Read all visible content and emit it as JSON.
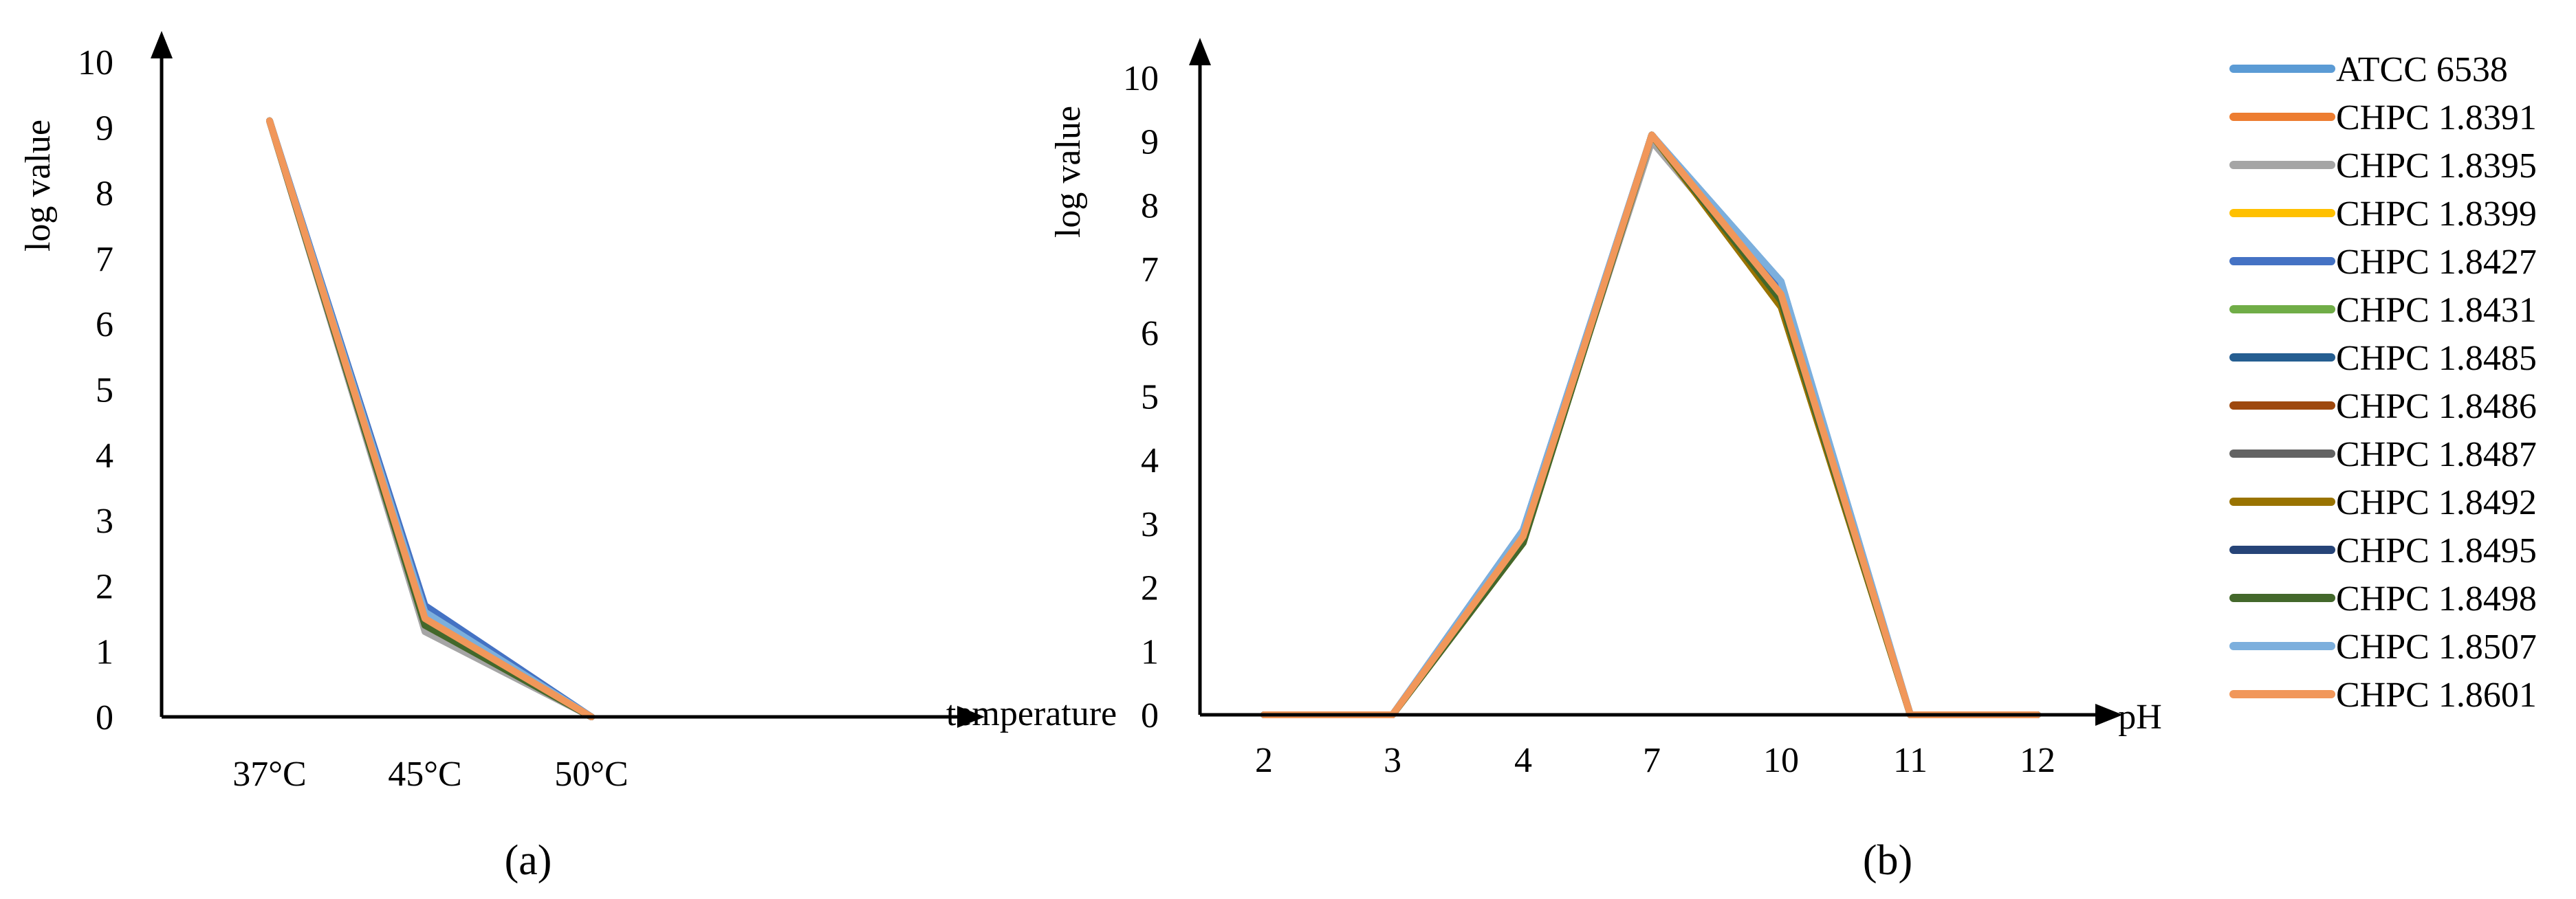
{
  "colors": {
    "ATCC 6538": "#5b9bd5",
    "CHPC 1.8391": "#ed7d31",
    "CHPC 1.8395": "#a5a5a5",
    "CHPC 1.8399": "#ffc000",
    "CHPC 1.8427": "#4472c4",
    "CHPC 1.8431": "#70ad47",
    "CHPC 1.8485": "#255e91",
    "CHPC 1.8486": "#9e480e",
    "CHPC 1.8487": "#636363",
    "CHPC 1.8492": "#997300",
    "CHPC 1.8495": "#264478",
    "CHPC 1.8498": "#43682b",
    "CHPC 1.8507": "#7cafdd",
    "CHPC 1.8601": "#f1975a"
  },
  "legend": [
    "ATCC 6538",
    "CHPC 1.8391",
    "CHPC 1.8395",
    "CHPC 1.8399",
    "CHPC 1.8427",
    "CHPC 1.8431",
    "CHPC 1.8485",
    "CHPC 1.8486",
    "CHPC 1.8487",
    "CHPC 1.8492",
    "CHPC 1.8495",
    "CHPC 1.8498",
    "CHPC 1.8507",
    "CHPC 1.8601"
  ],
  "chart_data": [
    {
      "type": "line",
      "panel_label": "(a)",
      "xlabel": "temperature",
      "ylabel": "log value",
      "categories": [
        "37°C",
        "45°C",
        "50°C"
      ],
      "ylim": [
        0,
        10
      ],
      "yticks": [
        0,
        1,
        2,
        3,
        4,
        5,
        6,
        7,
        8,
        9,
        10
      ],
      "grid": false,
      "series": [
        {
          "name": "ATCC 6538",
          "values": [
            9.1,
            1.6,
            0
          ]
        },
        {
          "name": "CHPC 1.8391",
          "values": [
            9.1,
            1.5,
            0
          ]
        },
        {
          "name": "CHPC 1.8395",
          "values": [
            9.1,
            1.3,
            0
          ]
        },
        {
          "name": "CHPC 1.8399",
          "values": [
            9.1,
            1.5,
            0
          ]
        },
        {
          "name": "CHPC 1.8427",
          "values": [
            9.1,
            1.7,
            0
          ]
        },
        {
          "name": "CHPC 1.8431",
          "values": [
            9.1,
            1.4,
            0
          ]
        },
        {
          "name": "CHPC 1.8485",
          "values": [
            9.1,
            1.5,
            0
          ]
        },
        {
          "name": "CHPC 1.8486",
          "values": [
            9.1,
            1.4,
            0
          ]
        },
        {
          "name": "CHPC 1.8487",
          "values": [
            9.1,
            1.4,
            0
          ]
        },
        {
          "name": "CHPC 1.8492",
          "values": [
            9.1,
            1.5,
            0
          ]
        },
        {
          "name": "CHPC 1.8495",
          "values": [
            9.1,
            1.6,
            0
          ]
        },
        {
          "name": "CHPC 1.8498",
          "values": [
            9.1,
            1.4,
            0
          ]
        },
        {
          "name": "CHPC 1.8507",
          "values": [
            9.1,
            1.6,
            0
          ]
        },
        {
          "name": "CHPC 1.8601",
          "values": [
            9.1,
            1.5,
            0
          ]
        }
      ]
    },
    {
      "type": "line",
      "panel_label": "(b)",
      "xlabel": "pH",
      "ylabel": "log value",
      "categories": [
        "2",
        "3",
        "4",
        "7",
        "10",
        "11",
        "12"
      ],
      "ylim": [
        0,
        10
      ],
      "yticks": [
        0,
        1,
        2,
        3,
        4,
        5,
        6,
        7,
        8,
        9,
        10
      ],
      "grid": false,
      "series": [
        {
          "name": "ATCC 6538",
          "values": [
            0,
            0,
            2.9,
            9.1,
            6.8,
            0,
            0
          ]
        },
        {
          "name": "CHPC 1.8391",
          "values": [
            0,
            0,
            2.8,
            9.1,
            6.6,
            0,
            0
          ]
        },
        {
          "name": "CHPC 1.8395",
          "values": [
            0,
            0,
            2.8,
            9.0,
            6.6,
            0,
            0
          ]
        },
        {
          "name": "CHPC 1.8399",
          "values": [
            0,
            0,
            2.8,
            9.1,
            6.6,
            0,
            0
          ]
        },
        {
          "name": "CHPC 1.8427",
          "values": [
            0,
            0,
            2.9,
            9.1,
            6.7,
            0,
            0
          ]
        },
        {
          "name": "CHPC 1.8431",
          "values": [
            0,
            0,
            2.8,
            9.1,
            6.5,
            0,
            0
          ]
        },
        {
          "name": "CHPC 1.8485",
          "values": [
            0,
            0,
            2.8,
            9.1,
            6.6,
            0,
            0
          ]
        },
        {
          "name": "CHPC 1.8486",
          "values": [
            0,
            0,
            2.7,
            9.1,
            6.5,
            0,
            0
          ]
        },
        {
          "name": "CHPC 1.8487",
          "values": [
            0,
            0,
            2.8,
            9.1,
            6.6,
            0,
            0
          ]
        },
        {
          "name": "CHPC 1.8492",
          "values": [
            0,
            0,
            2.7,
            9.1,
            6.4,
            0,
            0
          ]
        },
        {
          "name": "CHPC 1.8495",
          "values": [
            0,
            0,
            2.8,
            9.1,
            6.6,
            0,
            0
          ]
        },
        {
          "name": "CHPC 1.8498",
          "values": [
            0,
            0,
            2.7,
            9.1,
            6.5,
            0,
            0
          ]
        },
        {
          "name": "CHPC 1.8507",
          "values": [
            0,
            0,
            2.9,
            9.1,
            6.8,
            0,
            0
          ]
        },
        {
          "name": "CHPC 1.8601",
          "values": [
            0,
            0,
            2.8,
            9.1,
            6.6,
            0,
            0
          ]
        }
      ]
    }
  ]
}
